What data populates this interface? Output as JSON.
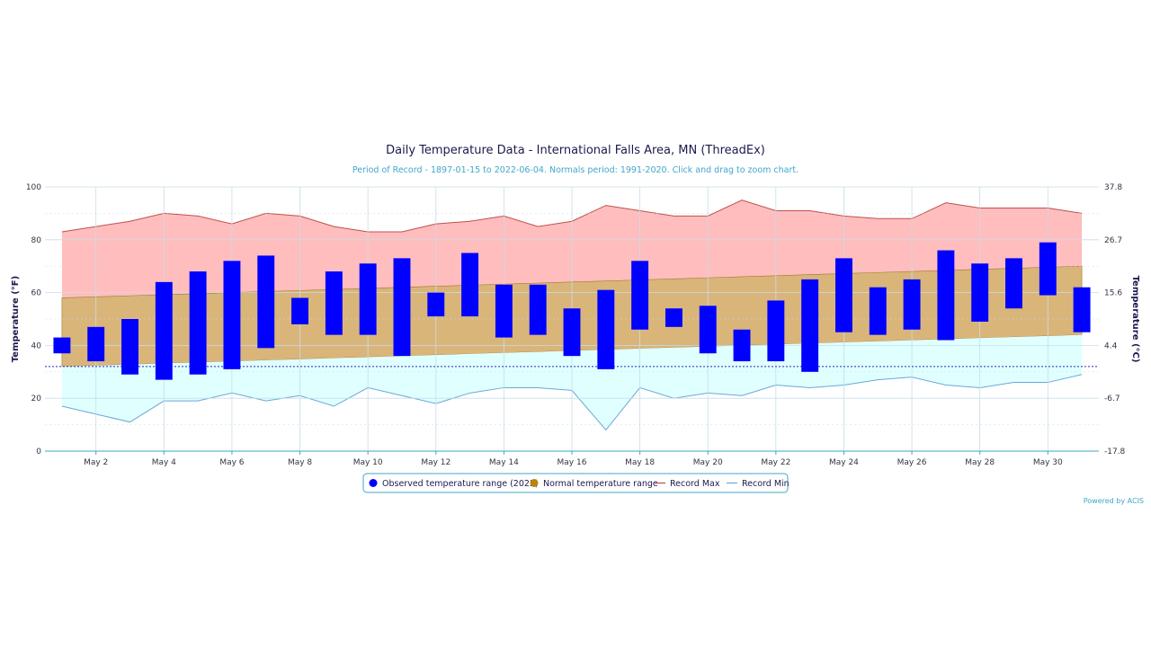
{
  "title": "Daily Temperature Data - International Falls Area, MN (ThreadEx)",
  "subtitle": "Period of Record - 1897-01-15 to 2022-06-04. Normals period: 1991-2020. Click and drag to zoom chart.",
  "credit": "Powered by ACIS",
  "colors": {
    "observed": "#0000ff",
    "normal_fill": "#d9b57a",
    "normal_edge": "#a07a28",
    "record_max_fill": "#ffbdbd",
    "record_max_line": "#c0504d",
    "record_min_fill": "#e0ffff",
    "record_min_line": "#6aa8d8",
    "freeze_line": "#2a2ab0",
    "grid": "#c8dde8"
  },
  "chart_data": {
    "type": "range-bar-area",
    "title": "Daily Temperature Data - International Falls Area, MN (ThreadEx)",
    "subtitle": "Period of Record - 1897-01-15 to 2022-06-04. Normals period: 1991-2020. Click and drag to zoom chart.",
    "ylabel_left": "Temperature (°F)",
    "ylabel_right": "Temperature (°C)",
    "ylim": [
      0,
      100
    ],
    "y_ticks_left": [
      "0",
      "20",
      "40",
      "60",
      "80",
      "100"
    ],
    "y_ticks_right": [
      "-17.8",
      "-6.7",
      "4.4",
      "15.6",
      "26.7",
      "37.8"
    ],
    "x_day_range": [
      1,
      31
    ],
    "x_ticks": [
      {
        "day": 2,
        "label": "May 2"
      },
      {
        "day": 4,
        "label": "May 4"
      },
      {
        "day": 6,
        "label": "May 6"
      },
      {
        "day": 8,
        "label": "May 8"
      },
      {
        "day": 10,
        "label": "May 10"
      },
      {
        "day": 12,
        "label": "May 12"
      },
      {
        "day": 14,
        "label": "May 14"
      },
      {
        "day": 16,
        "label": "May 16"
      },
      {
        "day": 18,
        "label": "May 18"
      },
      {
        "day": 20,
        "label": "May 20"
      },
      {
        "day": 22,
        "label": "May 22"
      },
      {
        "day": 24,
        "label": "May 24"
      },
      {
        "day": 26,
        "label": "May 26"
      },
      {
        "day": 28,
        "label": "May 28"
      },
      {
        "day": 30,
        "label": "May 30"
      }
    ],
    "freezing_line": 32,
    "observed": {
      "name": "Observed temperature range (2022)",
      "days": [
        1,
        2,
        3,
        4,
        5,
        6,
        7,
        8,
        9,
        10,
        11,
        12,
        13,
        14,
        15,
        16,
        17,
        18,
        19,
        20,
        21,
        22,
        23,
        24,
        25,
        26,
        27,
        28,
        29,
        30,
        31
      ],
      "low": [
        37,
        34,
        29,
        27,
        29,
        31,
        39,
        48,
        44,
        44,
        36,
        51,
        51,
        43,
        44,
        36,
        31,
        46,
        47,
        37,
        34,
        34,
        30,
        45,
        44,
        46,
        42,
        49,
        54,
        59,
        45
      ],
      "high": [
        43,
        47,
        50,
        64,
        68,
        72,
        74,
        58,
        68,
        71,
        73,
        60,
        75,
        63,
        63,
        54,
        61,
        72,
        54,
        55,
        46,
        57,
        65,
        73,
        62,
        65,
        76,
        71,
        73,
        79,
        62
      ]
    },
    "normal": {
      "name": "Normal temperature range",
      "start": {
        "low": 32,
        "high": 58
      },
      "end": {
        "low": 44,
        "high": 70
      }
    },
    "record_max": {
      "name": "Record Max",
      "values": [
        83,
        85,
        87,
        90,
        89,
        86,
        90,
        89,
        85,
        83,
        83,
        86,
        87,
        89,
        85,
        87,
        93,
        91,
        89,
        89,
        95,
        91,
        91,
        89,
        88,
        88,
        94,
        92,
        92,
        92,
        90
      ]
    },
    "record_min": {
      "name": "Record Min",
      "values": [
        17,
        14,
        11,
        19,
        19,
        22,
        19,
        21,
        17,
        24,
        21,
        18,
        22,
        24,
        24,
        23,
        8,
        24,
        20,
        22,
        21,
        25,
        24,
        25,
        27,
        28,
        25,
        24,
        26,
        26,
        29
      ]
    }
  }
}
